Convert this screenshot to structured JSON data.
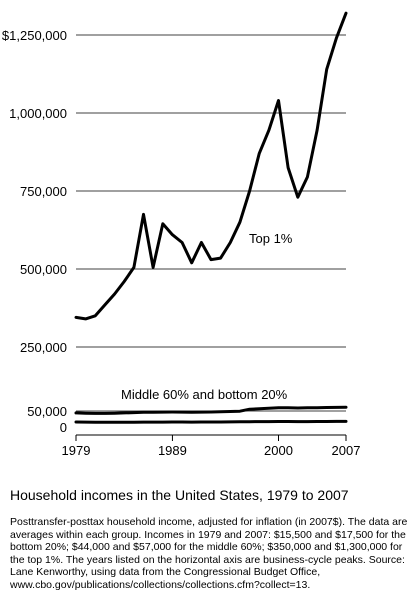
{
  "chart_data": {
    "type": "line",
    "title": "Household incomes in the United States, 1979 to 2007",
    "note": "Posttransfer-posttax household income, adjusted for inflation (in 2007$). The data are averages within each group. Incomes in 1979 and 2007: $15,500 and $17,500 for the bottom 20%; $44,000 and $57,000 for the middle 60%; $350,000 and $1,300,000 for the top 1%. The years listed on the horizontal axis are business-cycle peaks. Source: Lane Kenworthy, using data from the Congressional Budget Office, www.cbo.gov/publications/collections/collections.cfm?collect=13.",
    "x_ticks": [
      1979,
      1989,
      2000,
      2007
    ],
    "y_ticks": [
      0,
      50000,
      250000,
      500000,
      750000,
      1000000,
      1250000
    ],
    "y_tick_labels": [
      "0",
      "50,000",
      "250,000",
      "500,000",
      "750,000",
      "1,000,000",
      "$1,250,000"
    ],
    "xlim": [
      1979,
      2007
    ],
    "ylim": [
      0,
      1300000
    ],
    "grid": "horizontal",
    "annotations": [
      "Top 1%",
      "Middle 60% and bottom 20%"
    ],
    "series": [
      {
        "name": "Top 1%",
        "x": [
          1979,
          1980,
          1981,
          1982,
          1983,
          1984,
          1985,
          1986,
          1987,
          1988,
          1989,
          1990,
          1991,
          1992,
          1993,
          1994,
          1995,
          1996,
          1997,
          1998,
          1999,
          2000,
          2001,
          2002,
          2003,
          2004,
          2005,
          2006,
          2007
        ],
        "y": [
          345000,
          340000,
          350000,
          385000,
          420000,
          460000,
          505000,
          675000,
          505000,
          645000,
          610000,
          585000,
          520000,
          585000,
          530000,
          535000,
          585000,
          650000,
          750000,
          870000,
          945000,
          1040000,
          825000,
          730000,
          795000,
          945000,
          1140000,
          1240000,
          1320000
        ]
      },
      {
        "name": "Middle 60%",
        "x": [
          1979,
          1980,
          1981,
          1982,
          1983,
          1984,
          1985,
          1986,
          1987,
          1988,
          1989,
          1990,
          1991,
          1992,
          1993,
          1994,
          1995,
          1996,
          1997,
          1998,
          1999,
          2000,
          2001,
          2002,
          2003,
          2004,
          2005,
          2006,
          2007
        ],
        "y": [
          44000,
          43000,
          42500,
          42500,
          43000,
          44000,
          45000,
          46000,
          46000,
          46500,
          47000,
          46500,
          46000,
          46500,
          47000,
          47500,
          48500,
          49500,
          50500,
          52000,
          53500,
          55000,
          55000,
          54500,
          55000,
          55500,
          56000,
          56500,
          57000
        ]
      },
      {
        "name": "Bottom 20%",
        "x": [
          1979,
          1980,
          1981,
          1982,
          1983,
          1984,
          1985,
          1986,
          1987,
          1988,
          1989,
          1990,
          1991,
          1992,
          1993,
          1994,
          1995,
          1996,
          1997,
          1998,
          1999,
          2000,
          2001,
          2002,
          2003,
          2004,
          2005,
          2006,
          2007
        ],
        "y": [
          15500,
          15200,
          15000,
          14800,
          14800,
          14900,
          15000,
          15200,
          15200,
          15400,
          15600,
          15500,
          15300,
          15500,
          15600,
          15700,
          15900,
          16200,
          16500,
          16800,
          17000,
          17300,
          17200,
          17000,
          17000,
          17100,
          17300,
          17400,
          17500
        ]
      }
    ]
  }
}
